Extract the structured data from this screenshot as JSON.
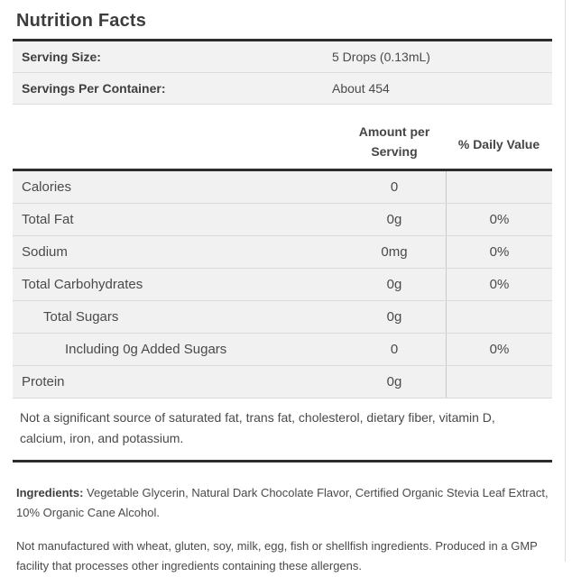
{
  "panel": {
    "title": "Nutrition Facts",
    "serving_info": [
      {
        "label": "Serving Size:",
        "value": "5 Drops (0.13mL)"
      },
      {
        "label": "Servings Per Container:",
        "value": "About 454"
      }
    ],
    "columns": {
      "amount": "Amount per Serving",
      "daily_value": "% Daily Value"
    },
    "rows": [
      {
        "label": "Calories",
        "amount": "0",
        "dv": "",
        "indent": 0
      },
      {
        "label": "Total Fat",
        "amount": "0g",
        "dv": "0%",
        "indent": 0
      },
      {
        "label": "Sodium",
        "amount": "0mg",
        "dv": "0%",
        "indent": 0
      },
      {
        "label": "Total Carbohydrates",
        "amount": "0g",
        "dv": "0%",
        "indent": 0
      },
      {
        "label": "Total Sugars",
        "amount": "0g",
        "dv": "",
        "indent": 1
      },
      {
        "label": "Including 0g Added Sugars",
        "amount": "0",
        "dv": "0%",
        "indent": 2
      },
      {
        "label": "Protein",
        "amount": "0g",
        "dv": "",
        "indent": 0
      }
    ],
    "footnote": "Not a significant source of saturated fat, trans fat, cholesterol, dietary fiber, vitamin D, calcium, iron, and potassium.",
    "ingredients_label": "Ingredients:",
    "ingredients_text": " Vegetable Glycerin, Natural Dark Chocolate Flavor, Certified Organic Stevia Leaf Extract, 10% Organic Cane Alcohol.",
    "allergen_text": "Not manufactured with wheat, gluten, soy, milk, egg, fish or shellfish ingredients. Produced in a GMP facility that processes other ingredients containing these allergens.",
    "colors": {
      "rule": "#2d2d2d",
      "row_bg": "#f1f1f1",
      "divider": "#dadada",
      "text": "#4a4a4a"
    }
  }
}
